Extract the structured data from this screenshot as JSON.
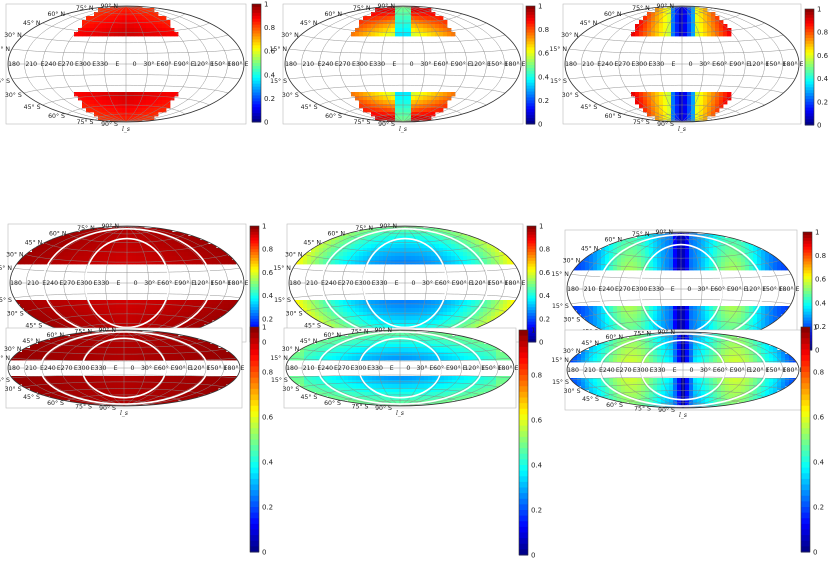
{
  "chart_data": [
    {
      "type": "heatmap",
      "projection": "aitoff",
      "xlabel": "l_s",
      "colorbar": {
        "ticks": [
          "0",
          "0.2",
          "0.4",
          "0.6",
          "0.8",
          "1"
        ]
      },
      "value_range": [
        0,
        1
      ],
      "pattern": "warm-caps",
      "white_curves": false,
      "band_deg": 30
    },
    {
      "type": "heatmap",
      "projection": "aitoff",
      "xlabel": "l_s",
      "colorbar": {
        "ticks": [
          "0",
          "0.2",
          "0.4",
          "0.6",
          "0.8",
          "1"
        ]
      },
      "value_range": [
        0,
        1
      ],
      "pattern": "split-caps",
      "white_curves": false,
      "band_deg": 30
    },
    {
      "type": "heatmap",
      "projection": "aitoff",
      "xlabel": "l_s",
      "colorbar": {
        "ticks": [
          "0",
          "0.2",
          "0.4",
          "0.6",
          "0.8",
          "1"
        ]
      },
      "value_range": [
        0,
        1
      ],
      "pattern": "bowtie-caps",
      "white_curves": false,
      "band_deg": 30
    },
    {
      "type": "heatmap",
      "projection": "aitoff",
      "xlabel": "l_s",
      "colorbar": {
        "ticks": [
          "0",
          "0.2",
          "0.4",
          "0.6",
          "0.8",
          "1"
        ]
      },
      "value_range": [
        0,
        1
      ],
      "pattern": "red-full",
      "white_curves": true,
      "band_deg": 18
    },
    {
      "type": "heatmap",
      "projection": "aitoff",
      "xlabel": "l_s",
      "colorbar": {
        "ticks": [
          "0",
          "0.2",
          "0.4",
          "0.6",
          "0.8",
          "1"
        ]
      },
      "value_range": [
        0,
        1
      ],
      "pattern": "blue-center",
      "white_curves": true,
      "band_deg": 18
    },
    {
      "type": "heatmap",
      "projection": "aitoff",
      "xlabel": "l_s",
      "colorbar": {
        "ticks": [
          "0",
          "0.2",
          "0.4",
          "0.6",
          "0.8",
          "1"
        ]
      },
      "value_range": [
        0,
        1
      ],
      "pattern": "green-lobes",
      "white_curves": true,
      "band_deg": 18
    },
    {
      "type": "heatmap",
      "projection": "aitoff",
      "xlabel": "l_s",
      "colorbar": {
        "ticks": [
          "0",
          "0.2",
          "0.4",
          "0.6",
          "0.8",
          "1"
        ]
      },
      "value_range": [
        0,
        1
      ],
      "pattern": "darkred-full",
      "white_curves": true,
      "band_deg": 10
    },
    {
      "type": "heatmap",
      "projection": "aitoff",
      "xlabel": "l_s",
      "colorbar": {
        "ticks": [
          "0",
          "0.2",
          "0.4",
          "0.6",
          "0.8",
          "1"
        ]
      },
      "value_range": [
        0,
        1
      ],
      "pattern": "blue-cyan",
      "white_curves": true,
      "band_deg": 10
    },
    {
      "type": "heatmap",
      "projection": "aitoff",
      "xlabel": "l_s",
      "colorbar": {
        "ticks": [
          "0",
          "0.2",
          "0.4",
          "0.6",
          "0.8",
          "1"
        ]
      },
      "value_range": [
        0,
        1
      ],
      "pattern": "cyan-lobes",
      "white_curves": true,
      "band_deg": 10
    }
  ],
  "axes": {
    "lat_labels_north": [
      "15° N",
      "30° N",
      "45° N",
      "60° N",
      "75° N",
      "90° N"
    ],
    "lat_labels_south": [
      "15° S",
      "30° S",
      "45° S",
      "60° S",
      "75° S",
      "90° S"
    ],
    "lon_labels": [
      "180",
      "210",
      "E240",
      "E270",
      "E300",
      "E330",
      "E",
      "0",
      "30° E",
      "60° E",
      "90° E",
      "120° E",
      "150° E",
      "180° E"
    ]
  }
}
